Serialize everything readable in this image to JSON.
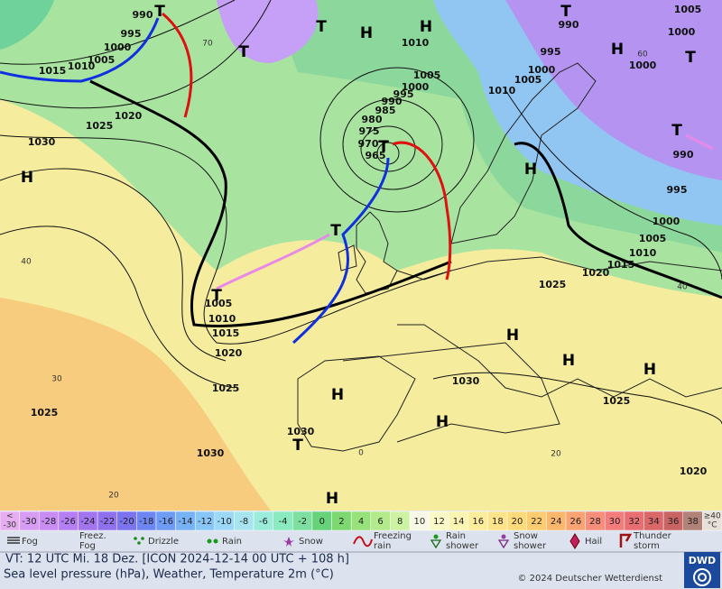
{
  "map": {
    "highs": [
      "H",
      "H",
      "H",
      "H",
      "H",
      "H",
      "H",
      "H",
      "H",
      "H",
      "H"
    ],
    "lows": [
      "T",
      "T",
      "T",
      "T",
      "T",
      "T",
      "T",
      "T",
      "T",
      "T"
    ],
    "isobar_labels": [
      "990",
      "995",
      "1000",
      "1005",
      "1010",
      "1015",
      "1020",
      "1025",
      "1030",
      "1010",
      "1005",
      "1000",
      "995",
      "990",
      "985",
      "980",
      "975",
      "970",
      "965",
      "1010",
      "1005",
      "1000",
      "995",
      "990",
      "1005",
      "1000",
      "1000",
      "995",
      "1000",
      "1005",
      "1010",
      "1015",
      "1020",
      "1025",
      "1005",
      "1010",
      "1015",
      "1020",
      "1025",
      "1030",
      "1025",
      "1030",
      "1030",
      "1025",
      "1020",
      "990"
    ],
    "temperature_labels": [
      "40",
      "30",
      "20",
      "60",
      "40",
      "70",
      "20",
      "0"
    ]
  },
  "legend": {
    "temperature_scale": [
      {
        "label": [
          "<",
          "-30"
        ],
        "color": "#e6aef0"
      },
      {
        "label": "-30",
        "color": "#d79cf3"
      },
      {
        "label": "-28",
        "color": "#c88cf3"
      },
      {
        "label": "-26",
        "color": "#b57ef2"
      },
      {
        "label": "-24",
        "color": "#a274f0"
      },
      {
        "label": "-22",
        "color": "#8f70ee"
      },
      {
        "label": "-20",
        "color": "#7c74ee"
      },
      {
        "label": "-18",
        "color": "#6e86f2"
      },
      {
        "label": "-16",
        "color": "#6e9cf4"
      },
      {
        "label": "-14",
        "color": "#78b2f6"
      },
      {
        "label": "-12",
        "color": "#88c6f8"
      },
      {
        "label": "-10",
        "color": "#9cd8f8"
      },
      {
        "label": "-8",
        "color": "#a8e4f0"
      },
      {
        "label": "-6",
        "color": "#9cecdc"
      },
      {
        "label": "-4",
        "color": "#8ceac0"
      },
      {
        "label": "-2",
        "color": "#7ee0a0"
      },
      {
        "label": "0",
        "color": "#66d27a"
      },
      {
        "label": "2",
        "color": "#7ed872"
      },
      {
        "label": "4",
        "color": "#98e27c"
      },
      {
        "label": "6",
        "color": "#b2ea8c"
      },
      {
        "label": "8",
        "color": "#ccf2a2"
      },
      {
        "label": "10",
        "color": "#f8f8e6"
      },
      {
        "label": "12",
        "color": "#fafac8"
      },
      {
        "label": "14",
        "color": "#fcf4b2"
      },
      {
        "label": "16",
        "color": "#fdec9c"
      },
      {
        "label": "18",
        "color": "#fde48a"
      },
      {
        "label": "20",
        "color": "#fdda7a"
      },
      {
        "label": "22",
        "color": "#fdcc6e"
      },
      {
        "label": "24",
        "color": "#fbb86c"
      },
      {
        "label": "26",
        "color": "#f9a274"
      },
      {
        "label": "28",
        "color": "#f78e7c"
      },
      {
        "label": "30",
        "color": "#f47c7c"
      },
      {
        "label": "32",
        "color": "#e86e72"
      },
      {
        "label": "34",
        "color": "#da6868"
      },
      {
        "label": "36",
        "color": "#c86464"
      },
      {
        "label": "38",
        "color": "#b08278"
      },
      {
        "label": [
          "≥40",
          "°C"
        ],
        "color": "#e8e0d8"
      }
    ],
    "weather": [
      [
        "Fog"
      ],
      [
        "Freez.",
        "Fog"
      ],
      [
        "Drizzle"
      ],
      [
        "Rain"
      ],
      [
        "Snow"
      ],
      [
        "Freezing",
        "rain"
      ],
      [
        "Rain",
        "shower"
      ],
      [
        "Snow",
        "shower"
      ],
      [
        "Hail"
      ],
      [
        "Thunder",
        "storm"
      ]
    ]
  },
  "footer": {
    "valid_time": "VT: 12 UTC Mi.  18 Dez. [ICON 2024-12-14  00 UTC + 108 h]",
    "description": "Sea level pressure (hPa), Weather, Temperature 2m (°C)",
    "copyright": "© 2024 Deutscher Wetterdienst",
    "logo": "DWD"
  }
}
